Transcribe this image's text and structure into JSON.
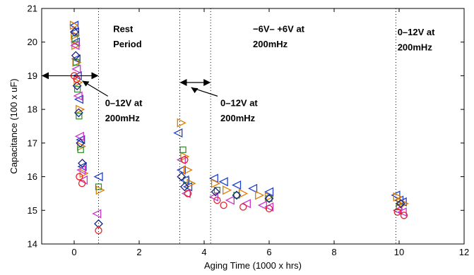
{
  "chart_data": {
    "type": "scatter",
    "title": "",
    "xlabel": "Aging Time (1000 x hrs)",
    "ylabel": "Capacitance (100 x uF)",
    "xlim": [
      -1,
      12
    ],
    "ylim": [
      14,
      21
    ],
    "xticks": [
      "0",
      "2",
      "4",
      "6",
      "8",
      "10",
      "12"
    ],
    "yticks": [
      "14",
      "15",
      "16",
      "17",
      "18",
      "19",
      "20",
      "21"
    ],
    "grid": false,
    "legend": "none",
    "vlines_x": [
      0.75,
      3.25,
      4.2,
      9.9
    ],
    "arrows": [
      {
        "from": [
          -1,
          19
        ],
        "to": [
          0.75,
          19
        ]
      },
      {
        "from": [
          3.25,
          18.8
        ],
        "to": [
          4.2,
          18.8
        ]
      }
    ],
    "annotations": [
      {
        "text": "Rest",
        "x": 1.2,
        "y": 20.3
      },
      {
        "text": "Period",
        "x": 1.2,
        "y": 19.85
      },
      {
        "text": "0–12V at",
        "x": 0.95,
        "y": 18.1
      },
      {
        "text": "200mHz",
        "x": 0.95,
        "y": 17.65
      },
      {
        "text": "0–12V at",
        "x": 4.5,
        "y": 18.1
      },
      {
        "text": "200mHz",
        "x": 4.5,
        "y": 17.65
      },
      {
        "text": "−6V– +6V at",
        "x": 5.5,
        "y": 20.3
      },
      {
        "text": "200mHz",
        "x": 5.5,
        "y": 19.85
      },
      {
        "text": "0–12V at",
        "x": 9.95,
        "y": 20.2
      },
      {
        "text": "200mHz",
        "x": 9.95,
        "y": 19.75
      }
    ],
    "series": [
      {
        "marker": "triangle-left",
        "color": "#1f3fd0",
        "x": [
          0.0,
          0.02,
          0.04,
          0.06,
          0.1,
          0.15,
          0.2,
          0.25,
          0.75,
          3.2,
          3.3,
          3.4,
          3.5,
          4.3,
          4.6,
          5.0,
          5.5,
          6.0,
          9.9,
          10.0,
          10.1
        ],
        "y": [
          20.5,
          20.3,
          20.0,
          19.5,
          19.0,
          18.3,
          17.1,
          16.3,
          16.0,
          17.3,
          16.2,
          15.9,
          15.7,
          15.95,
          15.85,
          15.75,
          15.65,
          15.55,
          15.45,
          15.3,
          15.25
        ]
      },
      {
        "marker": "triangle-right",
        "color": "#e07b00",
        "x": [
          0.0,
          0.03,
          0.05,
          0.08,
          0.12,
          0.18,
          0.22,
          0.3,
          0.8,
          3.3,
          3.4,
          3.5,
          3.6,
          4.35,
          4.7,
          5.2,
          5.7,
          6.0,
          9.95,
          10.05,
          10.15
        ],
        "y": [
          20.5,
          20.2,
          19.9,
          19.4,
          18.8,
          18.0,
          16.9,
          16.1,
          15.6,
          17.6,
          16.6,
          16.2,
          15.8,
          15.8,
          15.6,
          15.5,
          15.45,
          15.4,
          15.4,
          15.25,
          15.2
        ]
      },
      {
        "marker": "square",
        "color": "#3a8f3a",
        "x": [
          0.02,
          0.06,
          0.1,
          0.15,
          0.2,
          0.75,
          3.35,
          3.45,
          4.4,
          5.0,
          6.0,
          10.0
        ],
        "y": [
          20.1,
          19.4,
          18.6,
          17.8,
          16.8,
          15.7,
          16.8,
          15.9,
          15.6,
          15.45,
          15.35,
          15.1
        ]
      },
      {
        "marker": "triangle-left",
        "color": "#cc33cc",
        "x": [
          0.03,
          0.07,
          0.12,
          0.17,
          0.22,
          0.28,
          0.7,
          3.3,
          3.45,
          4.3,
          4.8,
          5.3,
          5.8,
          6.0,
          9.95,
          10.1
        ],
        "y": [
          19.9,
          19.2,
          18.4,
          17.2,
          16.2,
          15.9,
          14.9,
          16.5,
          15.5,
          15.4,
          15.3,
          15.2,
          15.15,
          15.1,
          15.0,
          14.95
        ]
      },
      {
        "marker": "diamond",
        "color": "#1a237e",
        "x": [
          0.01,
          0.05,
          0.09,
          0.14,
          0.19,
          0.25,
          0.75,
          3.3,
          3.4,
          4.35,
          5.0,
          6.0,
          10.05
        ],
        "y": [
          20.3,
          19.6,
          18.7,
          17.9,
          17.0,
          16.4,
          14.6,
          16.0,
          15.7,
          15.55,
          15.45,
          15.35,
          15.2
        ]
      },
      {
        "marker": "circle",
        "color": "#e8202a",
        "x": [
          0.0,
          0.08,
          0.16,
          0.24,
          0.75,
          3.4,
          3.5,
          4.4,
          4.6,
          5.2,
          6.0,
          9.95,
          10.15
        ],
        "y": [
          19.0,
          18.9,
          16.0,
          15.8,
          14.4,
          16.5,
          15.5,
          15.3,
          15.15,
          15.1,
          15.05,
          14.95,
          14.85
        ]
      }
    ]
  }
}
